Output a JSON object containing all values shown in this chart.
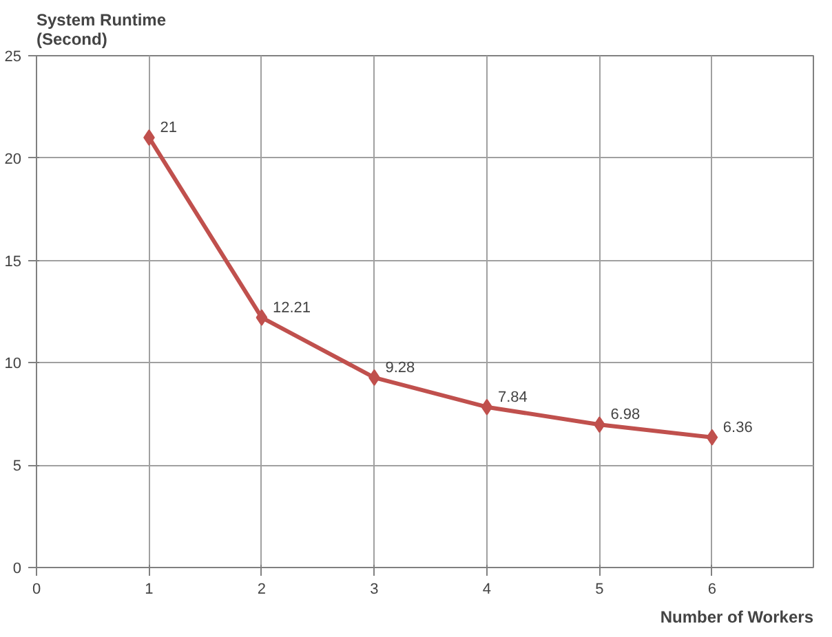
{
  "chart_data": {
    "type": "line",
    "ylabel": "System Runtime\n(Second)",
    "xlabel": "Number of Workers",
    "x": [
      1,
      2,
      3,
      4,
      5,
      6
    ],
    "series": [
      {
        "color": "#c0504d",
        "values": [
          21,
          12.21,
          9.28,
          7.84,
          6.98,
          6.36
        ]
      }
    ],
    "xlim": [
      0,
      6.9
    ],
    "xticks": [
      0,
      1,
      2,
      3,
      4,
      5,
      6
    ],
    "ylim": [
      0,
      25
    ],
    "yticks": [
      0,
      5,
      10,
      15,
      20,
      25
    ],
    "grid": true,
    "marker": "diamond",
    "line_style": "solid",
    "data_labels": true
  }
}
